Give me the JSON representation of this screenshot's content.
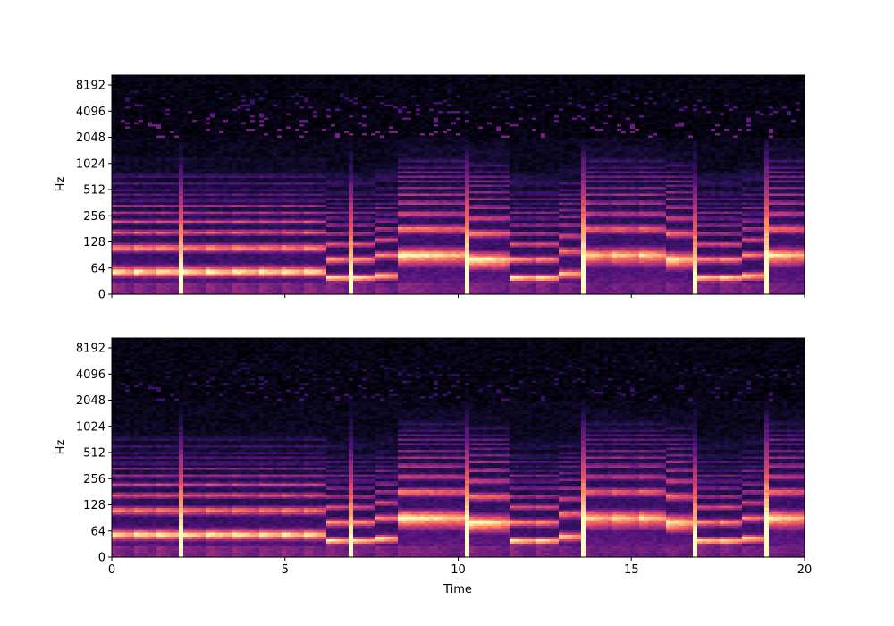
{
  "chart_data": [
    {
      "type": "heatmap",
      "subtype": "spectrogram",
      "colormap": "magma",
      "xlabel": "",
      "ylabel": "Hz",
      "xlim": [
        0,
        20
      ],
      "y_scale": "log",
      "y_ticks": [
        "0",
        "64",
        "128",
        "256",
        "512",
        "1024",
        "2048",
        "4096",
        "8192"
      ],
      "x_ticks": [
        0,
        5,
        10,
        15,
        20
      ],
      "x_tick_labels_visible": false,
      "segments": [
        {
          "start": 0.0,
          "end": 0.6,
          "f0": 55,
          "level": 0.95
        },
        {
          "start": 0.6,
          "end": 1.3,
          "f0": 55,
          "level": 0.95
        },
        {
          "start": 1.3,
          "end": 2.0,
          "f0": 55,
          "level": 0.95
        },
        {
          "start": 2.0,
          "end": 2.7,
          "f0": 55,
          "level": 0.95
        },
        {
          "start": 2.7,
          "end": 3.5,
          "f0": 55,
          "level": 0.95
        },
        {
          "start": 3.5,
          "end": 4.2,
          "f0": 55,
          "level": 0.95
        },
        {
          "start": 4.2,
          "end": 4.9,
          "f0": 55,
          "level": 0.95
        },
        {
          "start": 4.9,
          "end": 5.5,
          "f0": 55,
          "level": 0.95
        },
        {
          "start": 5.5,
          "end": 6.2,
          "f0": 55,
          "level": 0.95
        },
        {
          "start": 6.2,
          "end": 6.9,
          "f0": 40,
          "level": 0.9
        },
        {
          "start": 6.9,
          "end": 7.6,
          "f0": 40,
          "level": 0.9
        },
        {
          "start": 7.6,
          "end": 8.2,
          "f0": 45,
          "level": 0.9
        },
        {
          "start": 8.2,
          "end": 10.2,
          "f0": 90,
          "level": 0.9
        },
        {
          "start": 10.2,
          "end": 11.5,
          "f0": 80,
          "level": 0.9
        },
        {
          "start": 11.5,
          "end": 12.2,
          "f0": 40,
          "level": 0.9
        },
        {
          "start": 12.2,
          "end": 12.9,
          "f0": 40,
          "level": 0.9
        },
        {
          "start": 12.9,
          "end": 13.6,
          "f0": 50,
          "level": 0.85
        },
        {
          "start": 13.6,
          "end": 14.4,
          "f0": 90,
          "level": 0.8
        },
        {
          "start": 14.4,
          "end": 15.2,
          "f0": 90,
          "level": 0.8
        },
        {
          "start": 15.2,
          "end": 16.0,
          "f0": 90,
          "level": 0.8
        },
        {
          "start": 16.0,
          "end": 16.8,
          "f0": 80,
          "level": 0.85
        },
        {
          "start": 16.8,
          "end": 17.5,
          "f0": 40,
          "level": 0.9
        },
        {
          "start": 17.5,
          "end": 18.2,
          "f0": 40,
          "level": 0.9
        },
        {
          "start": 18.2,
          "end": 18.9,
          "f0": 45,
          "level": 0.85
        },
        {
          "start": 18.9,
          "end": 20.0,
          "f0": 90,
          "level": 0.85
        }
      ]
    },
    {
      "type": "heatmap",
      "subtype": "spectrogram",
      "colormap": "magma",
      "xlabel": "Time",
      "ylabel": "Hz",
      "xlim": [
        0,
        20
      ],
      "y_scale": "log",
      "y_ticks": [
        "0",
        "64",
        "128",
        "256",
        "512",
        "1024",
        "2048",
        "4096",
        "8192"
      ],
      "x_ticks": [
        0,
        5,
        10,
        15,
        20
      ],
      "x_tick_labels": [
        "0",
        "5",
        "10",
        "15",
        "20"
      ],
      "x_tick_labels_visible": true,
      "segments": [
        {
          "start": 0.0,
          "end": 0.6,
          "f0": 55,
          "level": 0.95
        },
        {
          "start": 0.6,
          "end": 1.3,
          "f0": 55,
          "level": 0.95
        },
        {
          "start": 1.3,
          "end": 2.0,
          "f0": 55,
          "level": 0.95
        },
        {
          "start": 2.0,
          "end": 2.7,
          "f0": 55,
          "level": 0.95
        },
        {
          "start": 2.7,
          "end": 3.5,
          "f0": 55,
          "level": 0.95
        },
        {
          "start": 3.5,
          "end": 4.2,
          "f0": 55,
          "level": 0.95
        },
        {
          "start": 4.2,
          "end": 4.9,
          "f0": 55,
          "level": 0.95
        },
        {
          "start": 4.9,
          "end": 5.5,
          "f0": 55,
          "level": 0.95
        },
        {
          "start": 5.5,
          "end": 6.2,
          "f0": 55,
          "level": 0.95
        },
        {
          "start": 6.2,
          "end": 6.9,
          "f0": 40,
          "level": 0.9
        },
        {
          "start": 6.9,
          "end": 7.6,
          "f0": 40,
          "level": 0.9
        },
        {
          "start": 7.6,
          "end": 8.2,
          "f0": 45,
          "level": 0.9
        },
        {
          "start": 8.2,
          "end": 10.2,
          "f0": 90,
          "level": 0.9
        },
        {
          "start": 10.2,
          "end": 11.5,
          "f0": 80,
          "level": 0.9
        },
        {
          "start": 11.5,
          "end": 12.2,
          "f0": 40,
          "level": 0.9
        },
        {
          "start": 12.2,
          "end": 12.9,
          "f0": 40,
          "level": 0.9
        },
        {
          "start": 12.9,
          "end": 13.6,
          "f0": 50,
          "level": 0.85
        },
        {
          "start": 13.6,
          "end": 14.4,
          "f0": 90,
          "level": 0.8
        },
        {
          "start": 14.4,
          "end": 15.2,
          "f0": 90,
          "level": 0.8
        },
        {
          "start": 15.2,
          "end": 16.0,
          "f0": 90,
          "level": 0.8
        },
        {
          "start": 16.0,
          "end": 16.8,
          "f0": 80,
          "level": 0.85
        },
        {
          "start": 16.8,
          "end": 17.5,
          "f0": 40,
          "level": 0.9
        },
        {
          "start": 17.5,
          "end": 18.2,
          "f0": 40,
          "level": 0.9
        },
        {
          "start": 18.2,
          "end": 18.9,
          "f0": 45,
          "level": 0.85
        },
        {
          "start": 18.9,
          "end": 20.0,
          "f0": 90,
          "level": 0.85
        }
      ]
    }
  ]
}
